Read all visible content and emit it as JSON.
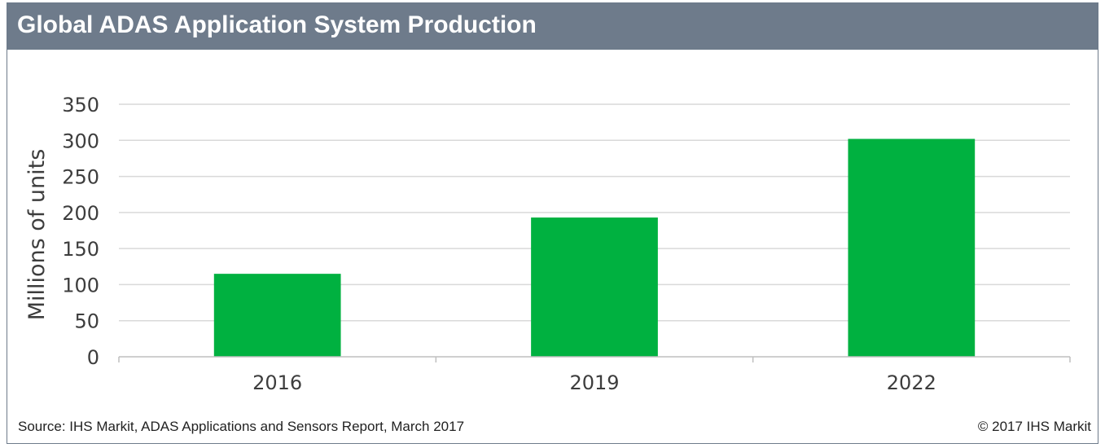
{
  "header": {
    "title": "Global ADAS Application System Production"
  },
  "chart_data": {
    "type": "bar",
    "title": "Global ADAS Application System Production",
    "xlabel": "",
    "ylabel": "Millions of units",
    "categories": [
      "2016",
      "2019",
      "2022"
    ],
    "values": [
      115,
      193,
      302
    ],
    "ylim": [
      0,
      350
    ],
    "yticks": [
      0,
      50,
      100,
      150,
      200,
      250,
      300,
      350
    ],
    "grid": true,
    "legend": "none",
    "colors": {
      "bar": "#00b140",
      "grid": "#d9d9d9",
      "axis": "#bfbfbf"
    }
  },
  "footer": {
    "source": "Source: IHS Markit, ADAS Applications and Sensors Report, March 2017",
    "copyright": "© 2017 IHS Markit"
  }
}
